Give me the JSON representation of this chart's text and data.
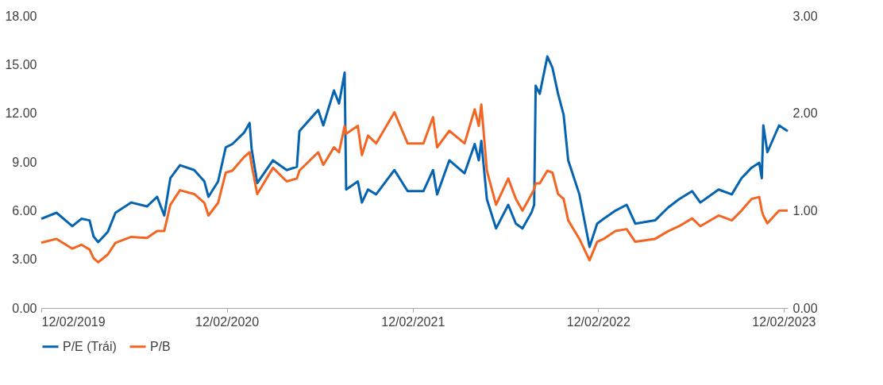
{
  "chart_data": {
    "type": "line",
    "x": [
      "2019-02-12",
      "2019-03-14",
      "2019-04-14",
      "2019-05-02",
      "2019-05-18",
      "2019-05-26",
      "2019-06-04",
      "2019-06-23",
      "2019-07-08",
      "2019-08-08",
      "2019-09-08",
      "2019-09-28",
      "2019-10-12",
      "2019-10-24",
      "2019-11-12",
      "2019-12-10",
      "2019-12-30",
      "2020-01-07",
      "2020-01-26",
      "2020-02-10",
      "2020-02-23",
      "2020-03-17",
      "2020-03-28",
      "2020-04-01",
      "2020-04-12",
      "2020-05-13",
      "2020-06-09",
      "2020-06-29",
      "2020-07-04",
      "2020-08-10",
      "2020-08-20",
      "2020-09-10",
      "2020-09-20",
      "2020-10-01",
      "2020-10-04",
      "2020-10-27",
      "2020-11-04",
      "2020-11-16",
      "2020-12-02",
      "2021-01-07",
      "2021-02-02",
      "2021-03-05",
      "2021-03-24",
      "2021-04-01",
      "2021-04-25",
      "2021-05-25",
      "2021-06-14",
      "2021-06-22",
      "2021-06-27",
      "2021-07-08",
      "2021-07-26",
      "2021-08-19",
      "2021-09-03",
      "2021-09-16",
      "2021-10-04",
      "2021-10-09",
      "2021-10-12",
      "2021-10-20",
      "2021-11-04",
      "2021-11-14",
      "2021-11-25",
      "2021-12-06",
      "2021-12-15",
      "2022-01-06",
      "2022-01-26",
      "2022-02-10",
      "2022-02-23",
      "2022-03-18",
      "2022-04-09",
      "2022-04-26",
      "2022-06-04",
      "2022-06-30",
      "2022-07-21",
      "2022-08-16",
      "2022-09-01",
      "2022-10-07",
      "2022-11-02",
      "2022-11-21",
      "2022-12-11",
      "2022-12-26",
      "2022-12-31",
      "2023-01-03",
      "2023-01-11",
      "2023-02-03",
      "2023-02-20"
    ],
    "series": [
      {
        "name": "P/E (Trái)",
        "color": "#0563b0",
        "axis": "y",
        "values": [
          5.5,
          5.87,
          5.04,
          5.5,
          5.4,
          4.4,
          4.06,
          4.7,
          5.87,
          6.5,
          6.26,
          6.85,
          5.7,
          8.0,
          8.8,
          8.5,
          7.8,
          6.85,
          7.8,
          9.9,
          10.1,
          10.8,
          11.4,
          9.8,
          7.7,
          9.1,
          8.5,
          8.7,
          10.9,
          12.2,
          11.25,
          13.4,
          12.6,
          14.5,
          7.3,
          7.8,
          6.5,
          7.3,
          7.0,
          8.5,
          7.2,
          7.2,
          8.5,
          7.0,
          9.1,
          8.3,
          10.1,
          9.1,
          10.3,
          6.7,
          4.9,
          6.36,
          5.2,
          4.9,
          5.9,
          6.36,
          13.7,
          13.2,
          15.5,
          14.8,
          13.2,
          11.9,
          9.1,
          7.0,
          3.77,
          5.2,
          5.5,
          6.0,
          6.36,
          5.2,
          5.4,
          6.2,
          6.7,
          7.2,
          6.5,
          7.3,
          7.0,
          8.0,
          8.65,
          8.95,
          8.0,
          11.25,
          9.6,
          11.25,
          10.9
        ]
      },
      {
        "name": "P/B",
        "color": "#f26522",
        "axis": "y2",
        "values": [
          0.67,
          0.71,
          0.61,
          0.65,
          0.6,
          0.51,
          0.47,
          0.55,
          0.67,
          0.73,
          0.72,
          0.79,
          0.79,
          1.06,
          1.21,
          1.17,
          1.08,
          0.95,
          1.08,
          1.39,
          1.41,
          1.55,
          1.6,
          1.47,
          1.17,
          1.44,
          1.3,
          1.33,
          1.41,
          1.6,
          1.47,
          1.65,
          1.6,
          1.87,
          1.79,
          1.87,
          1.57,
          1.77,
          1.69,
          2.01,
          1.69,
          1.69,
          1.96,
          1.65,
          1.82,
          1.69,
          2.04,
          1.87,
          2.09,
          1.41,
          1.06,
          1.33,
          1.12,
          1.0,
          1.17,
          1.22,
          1.28,
          1.28,
          1.41,
          1.39,
          1.17,
          1.12,
          0.9,
          0.71,
          0.49,
          0.68,
          0.71,
          0.79,
          0.81,
          0.68,
          0.71,
          0.79,
          0.84,
          0.92,
          0.84,
          0.95,
          0.9,
          1.0,
          1.12,
          1.14,
          1.0,
          0.95,
          0.87,
          1.0,
          1.0
        ]
      }
    ],
    "xlim": [
      "2019-02-12",
      "2023-02-20"
    ],
    "xticks": [
      {
        "value": "2019-02-12",
        "label": "12/02/2019"
      },
      {
        "value": "2020-02-12",
        "label": "12/02/2020"
      },
      {
        "value": "2021-02-12",
        "label": "12/02/2021"
      },
      {
        "value": "2022-02-12",
        "label": "12/02/2022"
      },
      {
        "value": "2023-02-12",
        "label": "12/02/2023"
      }
    ],
    "ylim": [
      0,
      18
    ],
    "yticks": [
      {
        "value": 0,
        "label": "0.00"
      },
      {
        "value": 3,
        "label": "3.00"
      },
      {
        "value": 6,
        "label": "6.00"
      },
      {
        "value": 9,
        "label": "9.00"
      },
      {
        "value": 12,
        "label": "12.00"
      },
      {
        "value": 15,
        "label": "15.00"
      },
      {
        "value": 18,
        "label": "18.00"
      }
    ],
    "y2lim": [
      0,
      3
    ],
    "y2ticks": [
      {
        "value": 0,
        "label": "0.00"
      },
      {
        "value": 1,
        "label": "1.00"
      },
      {
        "value": 2,
        "label": "2.00"
      },
      {
        "value": 3,
        "label": "3.00"
      }
    ],
    "legend": "bottom",
    "grid": false,
    "line_style": "solid",
    "marker": "none"
  }
}
